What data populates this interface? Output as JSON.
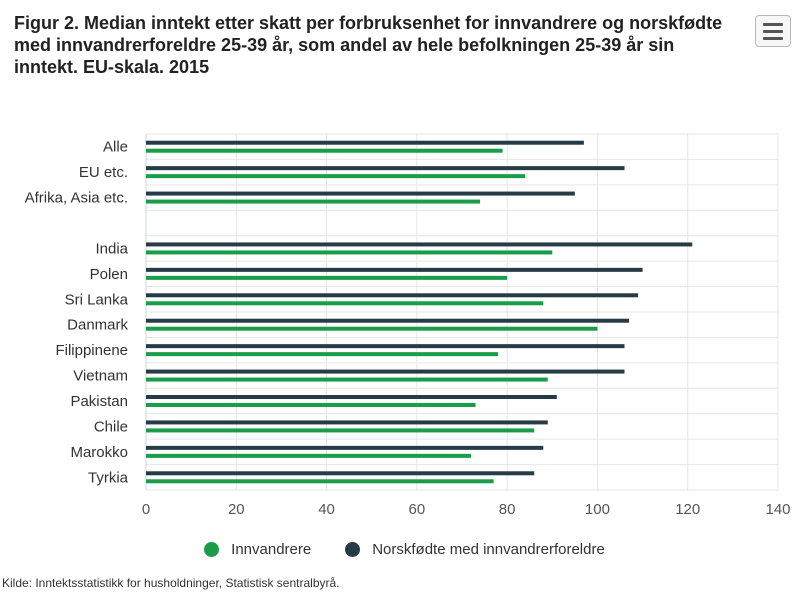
{
  "title": "Figur 2. Median inntekt etter skatt per forbruksenhet for innvandrere og norskfødte med innvandrerforeldre 25-39 år, som andel av hele befolkningen 25-39 år sin inntekt. EU-skala. 2015",
  "menu_icon": "hamburger-menu-icon",
  "source": "Kilde: Inntektsstatistikk for husholdninger, Statistisk sentralbyrå.",
  "chart_data": {
    "type": "bar",
    "orientation": "horizontal",
    "categories": [
      "Alle",
      "EU etc.",
      "Afrika, Asia etc.",
      "",
      "India",
      "Polen",
      "Sri Lanka",
      "Danmark",
      "Filippinene",
      "Vietnam",
      "Pakistan",
      "Chile",
      "Marokko",
      "Tyrkia"
    ],
    "series": [
      {
        "name": "Norskfødte med innvandrerforeldre",
        "color": "#263b45",
        "values": [
          97,
          106,
          95,
          null,
          121,
          110,
          109,
          107,
          106,
          106,
          91,
          89,
          88,
          86
        ]
      },
      {
        "name": "Innvandrere",
        "color": "#1a9d49",
        "values": [
          79,
          84,
          74,
          null,
          90,
          80,
          88,
          100,
          78,
          89,
          73,
          86,
          72,
          77
        ]
      }
    ],
    "xlim": [
      0,
      140
    ],
    "xticks": [
      "0",
      "20",
      "40",
      "60",
      "80",
      "100",
      "120",
      "140"
    ],
    "xlabel": "",
    "ylabel": "",
    "grid": true,
    "legend_position": "bottom"
  },
  "legend": [
    {
      "label": "Innvandrere",
      "color": "#1a9d49"
    },
    {
      "label": "Norskfødte med innvandrerforeldre",
      "color": "#263b45"
    }
  ]
}
